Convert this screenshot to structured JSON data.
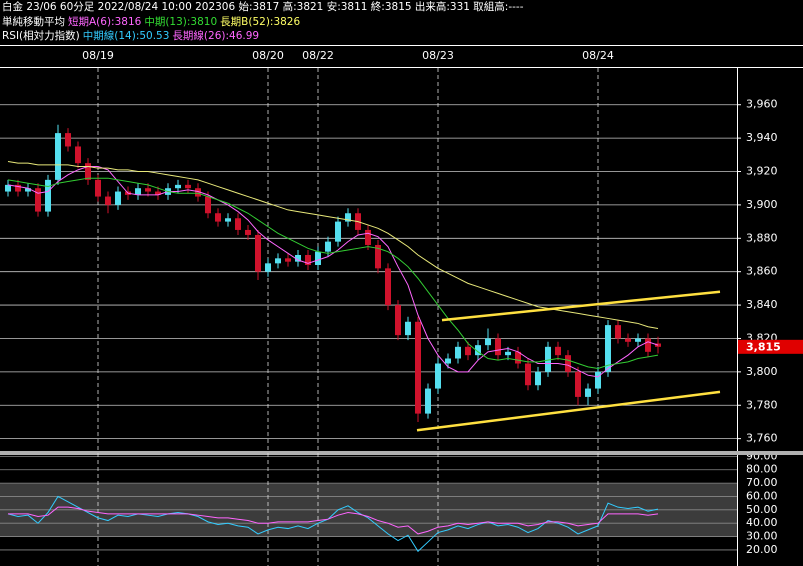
{
  "header": {
    "line1": "白金 23/06 60分足 2022/08/24 10:00 202306 始:3817 高:3821 安:3811 終:3815 出来高:331 取組高:----",
    "line2": [
      {
        "text": "単純移動平均",
        "color": "#ffffff"
      },
      {
        "text": "短期A(6):3816",
        "color": "#ff66ff"
      },
      {
        "text": "中期(13):3810",
        "color": "#33dd33"
      },
      {
        "text": "長期B(52):3826",
        "color": "#ffff66"
      }
    ],
    "line3": [
      {
        "text": "RSI(相対力指数)",
        "color": "#ffffff"
      },
      {
        "text": "中期線(14):50.53",
        "color": "#33ccff"
      },
      {
        "text": "長期線(26):46.99",
        "color": "#ff66ff"
      }
    ]
  },
  "chart_data": [
    {
      "type": "candlestick",
      "categories": [
        null,
        null,
        null,
        null,
        null,
        null,
        null,
        null,
        null,
        "08/19",
        null,
        null,
        null,
        null,
        null,
        null,
        null,
        null,
        null,
        null,
        null,
        null,
        null,
        null,
        null,
        null,
        "08/20",
        null,
        null,
        null,
        null,
        "08/22",
        null,
        null,
        null,
        null,
        null,
        null,
        null,
        null,
        null,
        null,
        null,
        "08/23",
        null,
        null,
        null,
        null,
        null,
        null,
        null,
        null,
        null,
        null,
        null,
        null,
        null,
        null,
        null,
        "08/24",
        null,
        null,
        null,
        null,
        null,
        null
      ],
      "open": [
        3908,
        3912,
        3908,
        3910,
        3896,
        3915,
        3943,
        3935,
        3925,
        3915,
        3905,
        3900,
        3908,
        3906,
        3910,
        3908,
        3906,
        3910,
        3912,
        3910,
        3905,
        3895,
        3890,
        3892,
        3885,
        3882,
        3860,
        3865,
        3868,
        3866,
        3870,
        3864,
        3872,
        3878,
        3890,
        3895,
        3885,
        3876,
        3862,
        3840,
        3822,
        3830,
        3775,
        3790,
        3805,
        3808,
        3815,
        3810,
        3816,
        3820,
        3810,
        3812,
        3805,
        3792,
        3800,
        3815,
        3810,
        3800,
        3785,
        3790,
        3800,
        3828,
        3820,
        3818,
        3820,
        3817
      ],
      "high": [
        3915,
        3915,
        3913,
        3913,
        3918,
        3948,
        3946,
        3938,
        3928,
        3918,
        3908,
        3911,
        3911,
        3913,
        3913,
        3911,
        3913,
        3915,
        3915,
        3913,
        3908,
        3898,
        3895,
        3895,
        3888,
        3885,
        3868,
        3871,
        3871,
        3873,
        3873,
        3875,
        3881,
        3893,
        3898,
        3898,
        3888,
        3879,
        3865,
        3843,
        3833,
        3833,
        3793,
        3808,
        3811,
        3818,
        3818,
        3819,
        3826,
        3823,
        3815,
        3815,
        3808,
        3803,
        3818,
        3818,
        3813,
        3803,
        3793,
        3803,
        3831,
        3831,
        3823,
        3823,
        3823,
        3821
      ],
      "low": [
        3905,
        3905,
        3905,
        3893,
        3893,
        3912,
        3932,
        3922,
        3912,
        3902,
        3895,
        3897,
        3903,
        3903,
        3905,
        3903,
        3903,
        3907,
        3907,
        3902,
        3892,
        3887,
        3887,
        3882,
        3879,
        3855,
        3857,
        3862,
        3863,
        3863,
        3861,
        3861,
        3869,
        3875,
        3887,
        3882,
        3873,
        3859,
        3837,
        3819,
        3819,
        3770,
        3772,
        3787,
        3802,
        3805,
        3807,
        3807,
        3813,
        3807,
        3807,
        3802,
        3789,
        3789,
        3797,
        3807,
        3797,
        3780,
        3780,
        3787,
        3797,
        3817,
        3815,
        3815,
        3809,
        3811
      ],
      "close": [
        3912,
        3908,
        3910,
        3896,
        3915,
        3943,
        3935,
        3925,
        3915,
        3905,
        3900,
        3908,
        3906,
        3910,
        3908,
        3906,
        3910,
        3912,
        3910,
        3905,
        3895,
        3890,
        3892,
        3885,
        3882,
        3860,
        3865,
        3868,
        3866,
        3870,
        3864,
        3872,
        3878,
        3890,
        3895,
        3885,
        3876,
        3862,
        3840,
        3822,
        3830,
        3775,
        3790,
        3805,
        3808,
        3815,
        3810,
        3816,
        3820,
        3810,
        3812,
        3805,
        3792,
        3800,
        3815,
        3810,
        3800,
        3785,
        3790,
        3800,
        3828,
        3820,
        3818,
        3820,
        3812,
        3815
      ],
      "up_color": "#55dfef",
      "down_color": "#d0122c",
      "series": [
        {
          "color": "#ff66ff",
          "values": [
            3912,
            3911,
            3910,
            3907,
            3908,
            3914,
            3918,
            3921,
            3923,
            3923,
            3921,
            3914,
            3907,
            3906,
            3906,
            3906,
            3908,
            3908,
            3909,
            3908,
            3906,
            3903,
            3900,
            3896,
            3891,
            3884,
            3879,
            3875,
            3871,
            3867,
            3865,
            3867,
            3869,
            3873,
            3878,
            3882,
            3883,
            3881,
            3875,
            3863,
            3852,
            3834,
            3820,
            3810,
            3803,
            3800,
            3800,
            3807,
            3812,
            3813,
            3814,
            3812,
            3808,
            3805,
            3805,
            3805,
            3804,
            3801,
            3798,
            3797,
            3802,
            3806,
            3810,
            3815,
            3818,
            3816
          ]
        },
        {
          "color": "#33cc33",
          "values": [
            3915,
            3914,
            3913,
            3912,
            3911,
            3913,
            3914,
            3915,
            3916,
            3916,
            3916,
            3915,
            3914,
            3913,
            3912,
            3910,
            3908,
            3907,
            3907,
            3907,
            3905,
            3903,
            3901,
            3898,
            3895,
            3891,
            3887,
            3883,
            3880,
            3877,
            3874,
            3872,
            3871,
            3872,
            3873,
            3874,
            3875,
            3874,
            3872,
            3868,
            3863,
            3856,
            3848,
            3840,
            3832,
            3825,
            3817,
            3812,
            3808,
            3807,
            3808,
            3807,
            3806,
            3806,
            3807,
            3808,
            3807,
            3805,
            3803,
            3802,
            3804,
            3805,
            3806,
            3808,
            3809,
            3810
          ]
        },
        {
          "color": "#e8e87a",
          "values": [
            3926,
            3925,
            3925,
            3924,
            3924,
            3924,
            3924,
            3923,
            3923,
            3922,
            3922,
            3921,
            3921,
            3920,
            3920,
            3919,
            3918,
            3917,
            3916,
            3915,
            3913,
            3911,
            3909,
            3907,
            3905,
            3903,
            3901,
            3899,
            3897,
            3896,
            3895,
            3894,
            3893,
            3892,
            3891,
            3890,
            3888,
            3886,
            3883,
            3879,
            3875,
            3870,
            3866,
            3862,
            3859,
            3856,
            3853,
            3851,
            3849,
            3847,
            3845,
            3843,
            3841,
            3839,
            3838,
            3837,
            3836,
            3835,
            3834,
            3833,
            3832,
            3831,
            3830,
            3829,
            3827,
            3826
          ]
        }
      ],
      "trend_lines": [
        {
          "color": "#ffe040",
          "x": [
            43.4,
            71.2
          ],
          "y": [
            3831,
            3848
          ]
        },
        {
          "color": "#ffe040",
          "x": [
            40.9,
            71.2
          ],
          "y": [
            3765,
            3788
          ]
        }
      ],
      "last_price": {
        "value": 3815,
        "label": "3,815"
      },
      "ylim": [
        3752,
        3982
      ],
      "yticks": [
        {
          "value": 3760,
          "label": "3,760"
        },
        {
          "value": 3780,
          "label": "3,780"
        },
        {
          "value": 3800,
          "label": "3,800"
        },
        {
          "value": 3820,
          "label": "3,820"
        },
        {
          "value": 3840,
          "label": "3,840"
        },
        {
          "value": 3860,
          "label": "3,860"
        },
        {
          "value": 3880,
          "label": "3,880"
        },
        {
          "value": 3900,
          "label": "3,900"
        },
        {
          "value": 3920,
          "label": "3,920"
        },
        {
          "value": 3940,
          "label": "3,940"
        },
        {
          "value": 3960,
          "label": "3,960"
        }
      ],
      "grid": true
    },
    {
      "type": "line",
      "series": [
        {
          "color": "#33ccff",
          "values": [
            47,
            45,
            46,
            40,
            48,
            60,
            56,
            52,
            48,
            44,
            42,
            46,
            45,
            47,
            46,
            45,
            47,
            48,
            47,
            45,
            41,
            39,
            40,
            38,
            37,
            32,
            35,
            37,
            36,
            38,
            36,
            40,
            43,
            50,
            53,
            48,
            44,
            38,
            32,
            27,
            31,
            19,
            26,
            33,
            35,
            38,
            36,
            39,
            41,
            38,
            39,
            37,
            33,
            36,
            42,
            40,
            37,
            32,
            35,
            38,
            55,
            52,
            51,
            52,
            49,
            50.53
          ]
        },
        {
          "color": "#ff66ff",
          "values": [
            47,
            47,
            47,
            45,
            46,
            52,
            52,
            51,
            49,
            48,
            47,
            47,
            47,
            47,
            47,
            47,
            47,
            47,
            47,
            46,
            45,
            44,
            44,
            43,
            42,
            40,
            40,
            41,
            41,
            41,
            41,
            42,
            43,
            46,
            48,
            47,
            45,
            42,
            40,
            37,
            38,
            32,
            34,
            37,
            38,
            40,
            39,
            40,
            41,
            40,
            40,
            40,
            38,
            39,
            41,
            41,
            40,
            38,
            39,
            40,
            47,
            47,
            47,
            47,
            46,
            46.99
          ]
        }
      ],
      "band": [
        30,
        70
      ],
      "ylim": [
        8,
        92.5
      ],
      "yticks": [
        {
          "value": 90,
          "label": "90.00"
        },
        {
          "value": 80,
          "label": "80.00"
        },
        {
          "value": 70,
          "label": "70.00"
        },
        {
          "value": 60,
          "label": "60.00"
        },
        {
          "value": 50,
          "label": "50.00"
        },
        {
          "value": 40,
          "label": "40.00"
        },
        {
          "value": 30,
          "label": "30.00"
        },
        {
          "value": 20,
          "label": "20.00"
        }
      ],
      "grid": true
    }
  ]
}
